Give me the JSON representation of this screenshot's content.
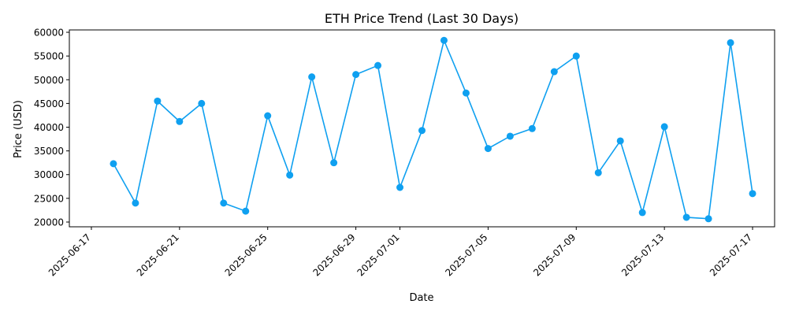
{
  "chart_data": {
    "type": "line",
    "title": "ETH Price Trend (Last 30 Days)",
    "xlabel": "Date",
    "ylabel": "Price (USD)",
    "color": "#0fa0f0",
    "grid": false,
    "legend": "none",
    "xlim": [
      "2025-06-16",
      "2025-07-18"
    ],
    "ylim": [
      19000,
      60500
    ],
    "x_ticks": [
      "2025-06-17",
      "2025-06-21",
      "2025-06-25",
      "2025-06-29",
      "2025-07-01",
      "2025-07-05",
      "2025-07-09",
      "2025-07-13",
      "2025-07-17"
    ],
    "y_ticks": [
      20000,
      25000,
      30000,
      35000,
      40000,
      45000,
      50000,
      55000,
      60000
    ],
    "series": [
      {
        "x": [
          "2025-06-18",
          "2025-06-19",
          "2025-06-20",
          "2025-06-21",
          "2025-06-22",
          "2025-06-23",
          "2025-06-24",
          "2025-06-25",
          "2025-06-26",
          "2025-06-27",
          "2025-06-28",
          "2025-06-29",
          "2025-06-30",
          "2025-07-01",
          "2025-07-02",
          "2025-07-03",
          "2025-07-04",
          "2025-07-05",
          "2025-07-06",
          "2025-07-07",
          "2025-07-08",
          "2025-07-09",
          "2025-07-10",
          "2025-07-11",
          "2025-07-12",
          "2025-07-13",
          "2025-07-14",
          "2025-07-15",
          "2025-07-16",
          "2025-07-17"
        ],
        "values": [
          32300,
          24000,
          45500,
          41200,
          45000,
          24000,
          22300,
          42400,
          29900,
          50600,
          32500,
          51100,
          53000,
          27300,
          39300,
          58300,
          47200,
          35500,
          38100,
          39700,
          51700,
          55000,
          30400,
          37100,
          22000,
          40100,
          21000,
          20700,
          57800,
          26000
        ]
      }
    ]
  }
}
